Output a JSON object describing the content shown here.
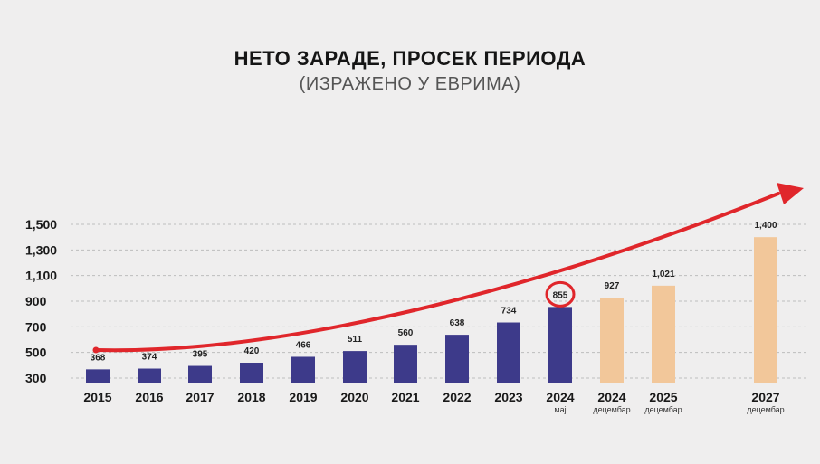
{
  "chart_data": {
    "type": "bar",
    "title": "НЕТО ЗАРАДЕ, ПРОСЕК ПЕРИОДА",
    "subtitle": "(ИЗРАЖЕНО У ЕВРИМА)",
    "ylim": [
      300,
      1500
    ],
    "yticks": [
      "1,500",
      "1,300",
      "1,100",
      "900",
      "700",
      "500",
      "300"
    ],
    "ytick_values": [
      1500,
      1300,
      1100,
      900,
      700,
      500,
      300
    ],
    "grid": true,
    "bars": [
      {
        "category": "2015",
        "sublabel": "",
        "value": 368,
        "label": "368",
        "kind": "actual"
      },
      {
        "category": "2016",
        "sublabel": "",
        "value": 374,
        "label": "374",
        "kind": "actual"
      },
      {
        "category": "2017",
        "sublabel": "",
        "value": 395,
        "label": "395",
        "kind": "actual"
      },
      {
        "category": "2018",
        "sublabel": "",
        "value": 420,
        "label": "420",
        "kind": "actual"
      },
      {
        "category": "2019",
        "sublabel": "",
        "value": 466,
        "label": "466",
        "kind": "actual"
      },
      {
        "category": "2020",
        "sublabel": "",
        "value": 511,
        "label": "511",
        "kind": "actual"
      },
      {
        "category": "2021",
        "sublabel": "",
        "value": 560,
        "label": "560",
        "kind": "actual"
      },
      {
        "category": "2022",
        "sublabel": "",
        "value": 638,
        "label": "638",
        "kind": "actual"
      },
      {
        "category": "2023",
        "sublabel": "",
        "value": 734,
        "label": "734",
        "kind": "actual"
      },
      {
        "category": "2024",
        "sublabel": "мај",
        "value": 855,
        "label": "855",
        "kind": "actual",
        "highlight": true
      },
      {
        "category": "2024",
        "sublabel": "децембар",
        "value": 927,
        "label": "927",
        "kind": "projected"
      },
      {
        "category": "2025",
        "sublabel": "децембар",
        "value": 1021,
        "label": "1,021",
        "kind": "projected"
      },
      {
        "category": "2027",
        "sublabel": "децембар",
        "value": 1400,
        "label": "1,400",
        "kind": "projected"
      }
    ],
    "colors": {
      "actual": "#3d3a8a",
      "projected": "#f2c79a",
      "trend_arrow": "#e0262b",
      "highlight_circle": "#e0262b",
      "grid": "#bdbdbd"
    }
  }
}
